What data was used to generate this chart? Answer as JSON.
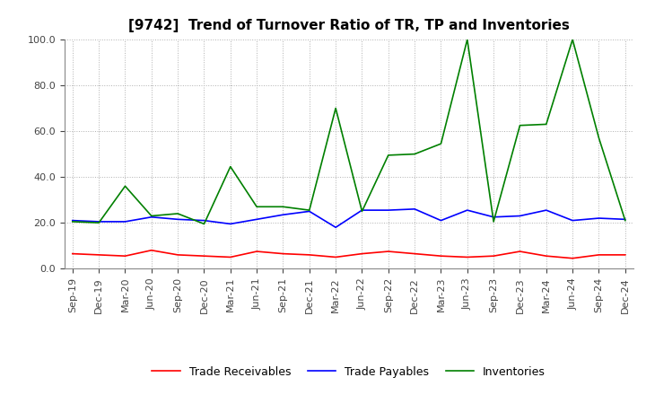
{
  "title": "[9742]  Trend of Turnover Ratio of TR, TP and Inventories",
  "ylim": [
    0.0,
    100.0
  ],
  "yticks": [
    0.0,
    20.0,
    40.0,
    60.0,
    80.0,
    100.0
  ],
  "x_labels": [
    "Sep-19",
    "Dec-19",
    "Mar-20",
    "Jun-20",
    "Sep-20",
    "Dec-20",
    "Mar-21",
    "Jun-21",
    "Sep-21",
    "Dec-21",
    "Mar-22",
    "Jun-22",
    "Sep-22",
    "Dec-22",
    "Mar-23",
    "Jun-23",
    "Sep-23",
    "Dec-23",
    "Mar-24",
    "Jun-24",
    "Sep-24",
    "Dec-24"
  ],
  "trade_receivables": [
    6.5,
    6.0,
    5.5,
    8.0,
    6.0,
    5.5,
    5.0,
    7.5,
    6.5,
    6.0,
    5.0,
    6.5,
    7.5,
    6.5,
    5.5,
    5.0,
    5.5,
    7.5,
    5.5,
    4.5,
    6.0,
    6.0
  ],
  "trade_payables": [
    21.0,
    20.5,
    20.5,
    22.5,
    21.5,
    21.0,
    19.5,
    21.5,
    23.5,
    25.0,
    18.0,
    25.5,
    25.5,
    26.0,
    21.0,
    25.5,
    22.5,
    23.0,
    25.5,
    21.0,
    22.0,
    21.5
  ],
  "inventories": [
    20.5,
    20.0,
    36.0,
    23.0,
    24.0,
    19.5,
    44.5,
    27.0,
    27.0,
    25.5,
    70.0,
    25.0,
    49.5,
    50.0,
    54.5,
    100.0,
    20.5,
    62.5,
    63.0,
    100.0,
    57.0,
    21.0
  ],
  "tr_color": "#ff0000",
  "tp_color": "#0000ff",
  "inv_color": "#008000",
  "background_color": "#ffffff",
  "grid_color": "#b0b0b0",
  "title_fontsize": 11,
  "legend_fontsize": 9,
  "tick_fontsize": 8
}
